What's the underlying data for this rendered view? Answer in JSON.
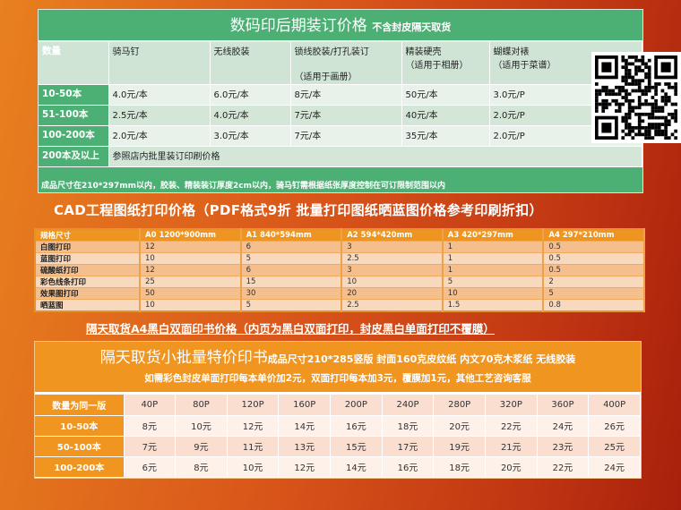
{
  "binding": {
    "title": "数码印后期装订价格",
    "subtitle": "不含封皮隔天取货",
    "headers": [
      "数量",
      "骑马钉",
      "无线胶装",
      "锁线胶装/打孔装订",
      "精装硬壳",
      "蝴蝶对裱"
    ],
    "header_notes": [
      "",
      "",
      "",
      "（适用于画册）",
      "（适用于相册）",
      "（适用于菜谱）"
    ],
    "rows": [
      {
        "qty": "10-50本",
        "cells": [
          "4.0元/本",
          "6.0元/本",
          "8元/本",
          "50元/本",
          "3.0元/P"
        ]
      },
      {
        "qty": "51-100本",
        "cells": [
          "2.5元/本",
          "4.0元/本",
          "7元/本",
          "40元/本",
          "2.0元/P"
        ]
      },
      {
        "qty": "100-200本",
        "cells": [
          "2.0元/本",
          "3.0元/本",
          "7元/本",
          "35元/本",
          "2.0元/P"
        ]
      }
    ],
    "large_qty": "200本及以上",
    "large_note": "参照店内批里装订印刷价格",
    "footer": "成品尺寸在210*297mm以内，胶装、精装装订厚度2cm以内，骑马钉需根据纸张厚度控制在可订限制范围以内"
  },
  "qr_icon": "qr-code",
  "cad": {
    "title": "CAD工程图纸打印价格（PDF格式9折 批量打印图纸晒蓝图价格参考印刷折扣）",
    "headers": [
      "规格尺寸",
      "A0  1200*900mm",
      "A1  840*594mm",
      "A2  594*420mm",
      "A3  420*297mm",
      "A4  297*210mm"
    ],
    "rows": [
      {
        "name": "白图打印",
        "values": [
          "12",
          "6",
          "3",
          "1",
          "0.5"
        ]
      },
      {
        "name": "蓝图打印",
        "values": [
          "10",
          "5",
          "2.5",
          "1",
          "0.5"
        ]
      },
      {
        "name": "硫酸纸打印",
        "values": [
          "12",
          "6",
          "3",
          "1",
          "0.5"
        ]
      },
      {
        "name": "彩色线条打印",
        "values": [
          "25",
          "15",
          "10",
          "5",
          "2"
        ]
      },
      {
        "name": "效果图打印",
        "values": [
          "50",
          "30",
          "20",
          "10",
          "5"
        ]
      },
      {
        "name": "晒蓝图",
        "values": [
          "10",
          "5",
          "2.5",
          "1.5",
          "0.8"
        ]
      }
    ]
  },
  "a4_heading": "隔天取货A4黑白双面印书价格（内页为黑白双面打印，封皮黑白单面打印不覆膜）",
  "books": {
    "title": "隔天取货小批量特价印书",
    "spec": "成品尺寸210*285竖版 封面160克皮纹纸 内文70克木浆纸 无线胶装",
    "note": "如需彩色封皮单面打印每本单价加2元，双面打印每本加3元，覆膜加1元，其他工艺咨询客服",
    "header_label": "数量为同一版",
    "pages": [
      "40P",
      "80P",
      "120P",
      "160P",
      "200P",
      "240P",
      "280P",
      "320P",
      "360P",
      "400P"
    ],
    "rows": [
      {
        "qty": "10-50本",
        "prices": [
          "8元",
          "10元",
          "12元",
          "14元",
          "16元",
          "18元",
          "20元",
          "22元",
          "24元",
          "26元"
        ]
      },
      {
        "qty": "50-100本",
        "prices": [
          "7元",
          "9元",
          "11元",
          "13元",
          "15元",
          "17元",
          "19元",
          "21元",
          "23元",
          "25元"
        ]
      },
      {
        "qty": "100-200本",
        "prices": [
          "6元",
          "8元",
          "10元",
          "12元",
          "14元",
          "16元",
          "18元",
          "20元",
          "22元",
          "24元"
        ]
      }
    ]
  },
  "colors": {
    "green": "#4caf73",
    "orange": "#ef9520",
    "background_left": "#e8801f",
    "background_right": "#a8200c"
  }
}
